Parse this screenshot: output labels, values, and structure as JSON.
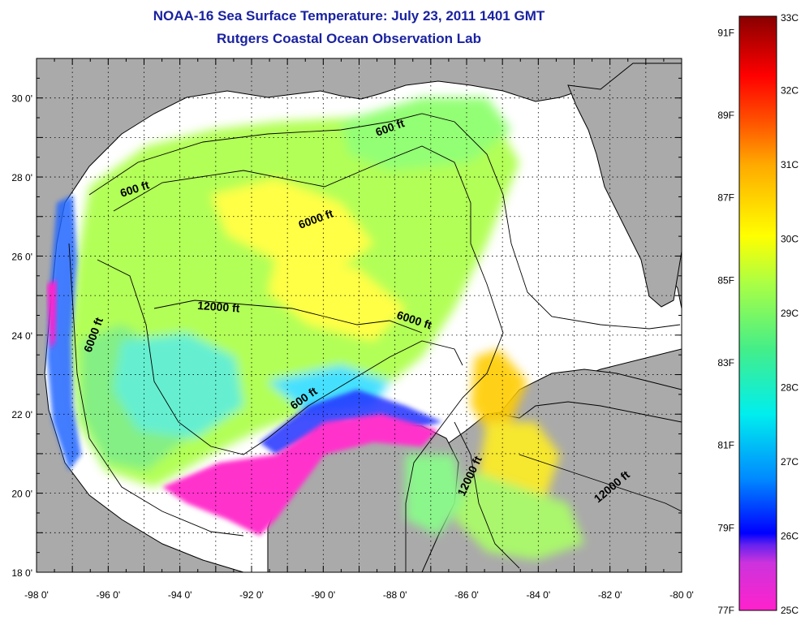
{
  "title": {
    "line1": "NOAA-16 Sea Surface Temperature:  July 23, 2011 1401 GMT",
    "line2": "Rutgers Coastal Ocean Observation Lab"
  },
  "map": {
    "lon_range": [
      -98,
      -80
    ],
    "lat_range": [
      18,
      31
    ],
    "x_ticks": [
      "-98 0'",
      "-96 0'",
      "-94 0'",
      "-92 0'",
      "-90 0'",
      "-88 0'",
      "-86 0'",
      "-84 0'",
      "-82 0'",
      "-80 0'"
    ],
    "y_ticks": [
      "18 0'",
      "20 0'",
      "22 0'",
      "24 0'",
      "26 0'",
      "28 0'",
      "30 0'"
    ],
    "grid": "dotted",
    "land_color": "#aaaaaa",
    "contour_labels": [
      "600 ft",
      "600 ft",
      "6000 ft",
      "6000 ft",
      "6000 ft",
      "12000 ft",
      "600 ft",
      "12000 ft",
      "12000 ft"
    ]
  },
  "colorbar": {
    "celsius_labels": [
      "33C",
      "32C",
      "31C",
      "30C",
      "29C",
      "28C",
      "27C",
      "26C",
      "25C"
    ],
    "fahrenheit_labels": [
      "91F",
      "89F",
      "87F",
      "85F",
      "83F",
      "81F",
      "79F",
      "77F"
    ],
    "colors": [
      "#ff22cc",
      "#cc33dd",
      "#6622ee",
      "#0000ff",
      "#0088ff",
      "#00eeee",
      "#44ee88",
      "#aaff44",
      "#ffff00",
      "#ffaa00",
      "#ff5500",
      "#ff0000",
      "#880000"
    ]
  }
}
